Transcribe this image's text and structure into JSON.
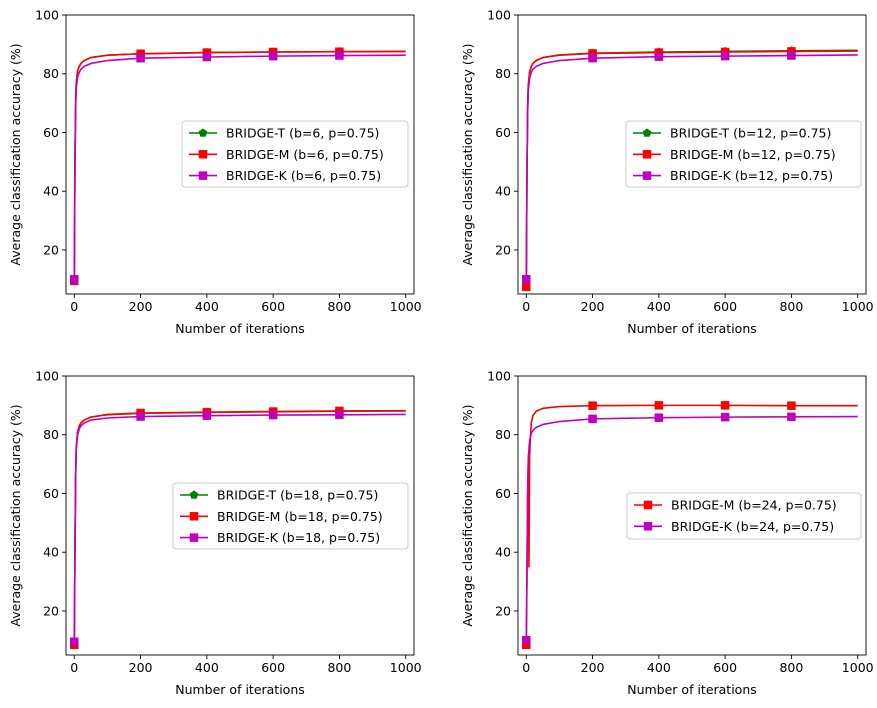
{
  "chart_data": [
    {
      "type": "line",
      "xlabel": "Number of iterations",
      "ylabel": "Average classification accuracy (%)",
      "xlim": [
        -25,
        1025
      ],
      "ylim": [
        5,
        100
      ],
      "xticks": [
        0,
        200,
        400,
        600,
        800,
        1000
      ],
      "yticks": [
        20,
        40,
        60,
        80,
        100
      ],
      "legend_position": "center-right",
      "series": [
        {
          "name": "BRIDGE-T (b=6, p=0.75)",
          "color": "#008000",
          "marker": "pentagon",
          "x": [
            0,
            2,
            4,
            6,
            10,
            15,
            20,
            30,
            50,
            100,
            200,
            400,
            600,
            800,
            1000
          ],
          "y": [
            10,
            50,
            70,
            77,
            81,
            82.5,
            83.5,
            84.5,
            85.5,
            86.3,
            86.8,
            87.2,
            87.4,
            87.5,
            87.6
          ]
        },
        {
          "name": "BRIDGE-M (b=6, p=0.75)",
          "color": "#ff0000",
          "marker": "square",
          "x": [
            0,
            2,
            4,
            6,
            10,
            15,
            20,
            30,
            50,
            100,
            200,
            400,
            600,
            800,
            1000
          ],
          "y": [
            9.5,
            50,
            70,
            77,
            81,
            82.5,
            83.5,
            84.5,
            85.5,
            86.3,
            86.8,
            87.2,
            87.4,
            87.5,
            87.6
          ]
        },
        {
          "name": "BRIDGE-K (b=6, p=0.75)",
          "color": "#bf00bf",
          "marker": "square",
          "x": [
            0,
            2,
            4,
            6,
            10,
            15,
            20,
            30,
            50,
            100,
            200,
            400,
            600,
            800,
            1000
          ],
          "y": [
            10,
            48,
            68,
            75,
            79,
            80.5,
            81.5,
            82.5,
            83.5,
            84.5,
            85.3,
            85.7,
            86.0,
            86.2,
            86.3
          ]
        }
      ]
    },
    {
      "type": "line",
      "xlabel": "Number of iterations",
      "ylabel": "Average classification accuracy (%)",
      "xlim": [
        -25,
        1025
      ],
      "ylim": [
        5,
        100
      ],
      "xticks": [
        0,
        200,
        400,
        600,
        800,
        1000
      ],
      "yticks": [
        20,
        40,
        60,
        80,
        100
      ],
      "legend_position": "center-right",
      "series": [
        {
          "name": "BRIDGE-T (b=12, p=0.75)",
          "color": "#008000",
          "marker": "pentagon",
          "x": [
            0,
            2,
            4,
            6,
            10,
            15,
            20,
            30,
            50,
            100,
            200,
            400,
            600,
            800,
            1000
          ],
          "y": [
            8,
            45,
            68,
            76,
            80.5,
            82.5,
            83.5,
            84.5,
            85.5,
            86.4,
            87.0,
            87.4,
            87.6,
            87.8,
            88.0
          ]
        },
        {
          "name": "BRIDGE-M (b=12, p=0.75)",
          "color": "#ff0000",
          "marker": "square",
          "x": [
            0,
            2,
            4,
            6,
            10,
            15,
            20,
            30,
            50,
            100,
            200,
            400,
            600,
            800,
            1000
          ],
          "y": [
            7.5,
            45,
            68,
            76,
            80.5,
            82.5,
            83.5,
            84.5,
            85.5,
            86.3,
            86.9,
            87.2,
            87.4,
            87.6,
            87.7
          ]
        },
        {
          "name": "BRIDGE-K (b=12, p=0.75)",
          "color": "#bf00bf",
          "marker": "square",
          "x": [
            0,
            2,
            4,
            6,
            10,
            15,
            20,
            30,
            50,
            100,
            200,
            400,
            600,
            800,
            1000
          ],
          "y": [
            10,
            45,
            66,
            74,
            78.5,
            80.5,
            81.5,
            82.5,
            83.5,
            84.5,
            85.3,
            85.8,
            86.0,
            86.2,
            86.4
          ]
        }
      ]
    },
    {
      "type": "line",
      "xlabel": "Number of iterations",
      "ylabel": "Average classification accuracy (%)",
      "xlim": [
        -25,
        1025
      ],
      "ylim": [
        5,
        100
      ],
      "xticks": [
        0,
        200,
        400,
        600,
        800,
        1000
      ],
      "yticks": [
        20,
        40,
        60,
        80,
        100
      ],
      "legend_position": "center-right",
      "series": [
        {
          "name": "BRIDGE-T (b=18, p=0.75)",
          "color": "#008000",
          "marker": "pentagon",
          "x": [
            0,
            2,
            4,
            6,
            10,
            15,
            20,
            30,
            50,
            100,
            200,
            400,
            600,
            800,
            1000
          ],
          "y": [
            8.5,
            40,
            66,
            76,
            81,
            83,
            84,
            85,
            86,
            86.8,
            87.3,
            87.6,
            87.8,
            88.0,
            88.1
          ]
        },
        {
          "name": "BRIDGE-M (b=18, p=0.75)",
          "color": "#ff0000",
          "marker": "square",
          "x": [
            0,
            2,
            4,
            6,
            10,
            15,
            20,
            30,
            50,
            100,
            200,
            400,
            600,
            800,
            1000
          ],
          "y": [
            8.5,
            40,
            66,
            76,
            81,
            83,
            84,
            85,
            86,
            86.9,
            87.4,
            87.7,
            87.9,
            88.1,
            88.2
          ]
        },
        {
          "name": "BRIDGE-K (b=18, p=0.75)",
          "color": "#bf00bf",
          "marker": "square",
          "x": [
            0,
            2,
            4,
            6,
            10,
            15,
            20,
            30,
            50,
            100,
            200,
            400,
            600,
            800,
            1000
          ],
          "y": [
            9.5,
            40,
            65,
            75,
            80,
            82,
            83,
            84,
            85,
            85.7,
            86.2,
            86.5,
            86.7,
            86.8,
            86.9
          ]
        }
      ]
    },
    {
      "type": "line",
      "xlabel": "Number of iterations",
      "ylabel": "Average classification accuracy (%)",
      "xlim": [
        -25,
        1025
      ],
      "ylim": [
        5,
        100
      ],
      "xticks": [
        0,
        200,
        400,
        600,
        800,
        1000
      ],
      "yticks": [
        20,
        40,
        60,
        80,
        100
      ],
      "legend_position": "center-right",
      "series": [
        {
          "name": "BRIDGE-M (b=24, p=0.75)",
          "color": "#ff0000",
          "marker": "square",
          "x": [
            0,
            2,
            4,
            6,
            8,
            10,
            12,
            15,
            20,
            30,
            50,
            100,
            200,
            400,
            600,
            800,
            1000
          ],
          "y": [
            8.5,
            35,
            60,
            70,
            35,
            72,
            78,
            84,
            86.5,
            88,
            89,
            89.6,
            89.9,
            90.0,
            90.0,
            89.9,
            89.9
          ]
        },
        {
          "name": "BRIDGE-K (b=24, p=0.75)",
          "color": "#bf00bf",
          "marker": "square",
          "x": [
            0,
            2,
            4,
            6,
            10,
            15,
            20,
            30,
            50,
            100,
            200,
            400,
            600,
            800,
            1000
          ],
          "y": [
            10,
            30,
            60,
            72,
            78,
            80.5,
            81.5,
            82.5,
            83.5,
            84.5,
            85.4,
            85.8,
            86.0,
            86.1,
            86.2
          ]
        }
      ]
    }
  ]
}
